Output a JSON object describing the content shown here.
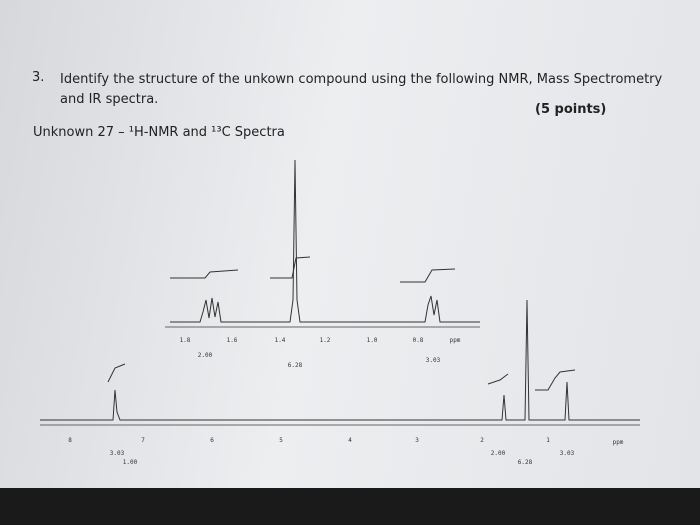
{
  "question": {
    "number": "3.",
    "text": "Identify the structure of the unkown compound using the following NMR, Mass Spectrometry and IR spectra.",
    "points": "(5 points)"
  },
  "subtitle": "Unknown 27 – ¹H-NMR and ¹³C Spectra",
  "inset": {
    "axis_labels": [
      "1.8",
      "1.6",
      "1.4",
      "1.2",
      "1.0",
      "0.8"
    ],
    "unit": "ppm",
    "integrals": [
      "2.00",
      "6.28",
      "3.03"
    ]
  },
  "spectrum": {
    "axis_labels": [
      "8",
      "7",
      "6",
      "5",
      "4",
      "3",
      "2",
      "1"
    ],
    "unit": "ppm",
    "integrals": [
      "3.03",
      "1.00",
      "2.00",
      "6.28",
      "3.03"
    ]
  }
}
